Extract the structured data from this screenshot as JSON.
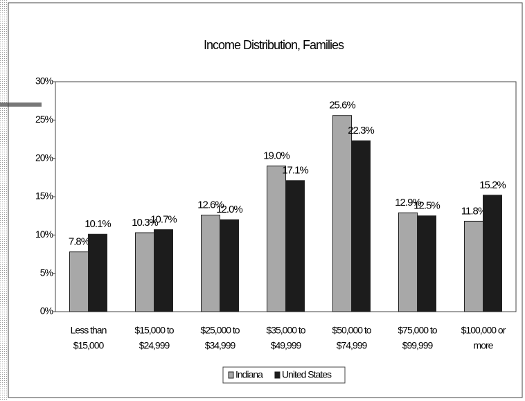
{
  "chart_data": {
    "type": "bar",
    "title": "Income Distribution, Families",
    "categories": [
      [
        "Less than",
        "$15,000"
      ],
      [
        "$15,000 to",
        "$24,999"
      ],
      [
        "$25,000 to",
        "$34,999"
      ],
      [
        "$35,000 to",
        "$49,999"
      ],
      [
        "$50,000 to",
        "$74,999"
      ],
      [
        "$75,000 to",
        "$99,999"
      ],
      [
        "$100,000 or",
        "more"
      ]
    ],
    "series": [
      {
        "name": "Indiana",
        "color": "#a8a8a8",
        "values": [
          7.8,
          10.3,
          12.6,
          19.0,
          25.6,
          12.9,
          11.8
        ],
        "value_labels": [
          "7.8%",
          "10.3%",
          "12.6%",
          "19.0%",
          "25.6%",
          "12.9%",
          "11.8%"
        ]
      },
      {
        "name": "United States",
        "color": "#1c1c1c",
        "values": [
          10.1,
          10.7,
          12.0,
          17.1,
          22.3,
          12.5,
          15.2
        ],
        "value_labels": [
          "10.1%",
          "10.7%",
          "12.0%",
          "17.1%",
          "22.3%",
          "12.5%",
          "15.2%"
        ]
      }
    ],
    "ylim": [
      0,
      30
    ],
    "yticks": [
      {
        "value": 0,
        "label": "0%"
      },
      {
        "value": 5,
        "label": "5%"
      },
      {
        "value": 10,
        "label": "10%"
      },
      {
        "value": 15,
        "label": "15%"
      },
      {
        "value": 20,
        "label": "20%"
      },
      {
        "value": 25,
        "label": "25%"
      },
      {
        "value": 30,
        "label": "30%"
      }
    ],
    "grid": false,
    "legend": "bottom"
  }
}
